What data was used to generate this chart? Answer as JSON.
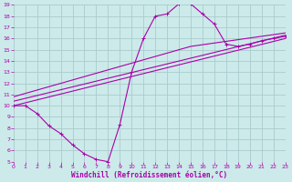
{
  "xlabel": "Windchill (Refroidissement éolien,°C)",
  "bg_color": "#cceaea",
  "line_color": "#aa00aa",
  "grid_color": "#aacccc",
  "xmin": 0,
  "xmax": 23,
  "ymin": 5,
  "ymax": 19,
  "xticks": [
    0,
    1,
    2,
    3,
    4,
    5,
    6,
    7,
    8,
    9,
    10,
    11,
    12,
    13,
    14,
    15,
    16,
    17,
    18,
    19,
    20,
    21,
    22,
    23
  ],
  "yticks": [
    5,
    6,
    7,
    8,
    9,
    10,
    11,
    12,
    13,
    14,
    15,
    16,
    17,
    18,
    19
  ],
  "line1_x": [
    0,
    1,
    2,
    3,
    4,
    5,
    6,
    7,
    8,
    9,
    10,
    11,
    12,
    13,
    14,
    15,
    16,
    17,
    18,
    19,
    20,
    21,
    22,
    23
  ],
  "line1_y": [
    10,
    10,
    9.3,
    8.2,
    7.5,
    6.5,
    5.7,
    5.2,
    5.0,
    8.3,
    13.0,
    16.0,
    18.0,
    18.2,
    19.1,
    19.1,
    18.2,
    17.3,
    15.5,
    15.3,
    15.5,
    15.8,
    16.0,
    16.2
  ],
  "line2_x": [
    0,
    23
  ],
  "line2_y": [
    10.0,
    16.0
  ],
  "line3_x": [
    0,
    23
  ],
  "line3_y": [
    10.4,
    16.3
  ],
  "line4_x": [
    0,
    15,
    23
  ],
  "line4_y": [
    10.8,
    15.3,
    16.5
  ]
}
